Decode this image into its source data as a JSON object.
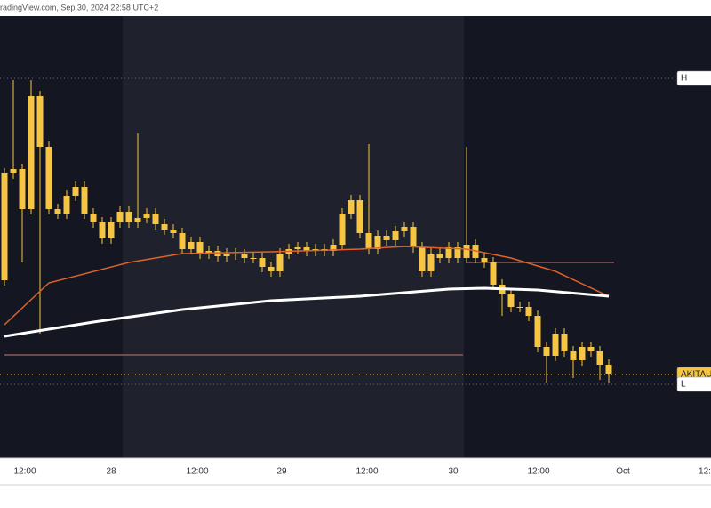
{
  "chart_data": {
    "type": "candlestick",
    "header": "radingView.com, Sep 30, 2024 22:58 UTC+2",
    "time_labels": [
      "12:00",
      "28",
      "12:00",
      "29",
      "12:00",
      "30",
      "12:00",
      "Oct",
      "12:"
    ],
    "ylim": [
      0,
      497
    ],
    "color": "#f5c543",
    "open": [
      200,
      320,
      325,
      280,
      407,
      350,
      280,
      275,
      295,
      305,
      275,
      265,
      247,
      265,
      277,
      265,
      270,
      275,
      263,
      257,
      253,
      235,
      243,
      230,
      233,
      227,
      230,
      229,
      225,
      225,
      215,
      210,
      230,
      235,
      237,
      233,
      235,
      233,
      240,
      275,
      290,
      253,
      235,
      250,
      245,
      255,
      260,
      237,
      210,
      230,
      225,
      237,
      225,
      240,
      225,
      220,
      195,
      185,
      170,
      170,
      160,
      125,
      115,
      140,
      120,
      110,
      125,
      120,
      105
    ],
    "high": [
      326,
      425,
      331,
      425,
      413,
      356,
      286,
      301,
      311,
      311,
      281,
      271,
      271,
      283,
      283,
      365,
      281,
      281,
      269,
      263,
      259,
      249,
      249,
      239,
      239,
      236,
      236,
      235,
      231,
      231,
      221,
      236,
      241,
      243,
      243,
      241,
      241,
      246,
      281,
      296,
      296,
      353,
      256,
      256,
      261,
      266,
      266,
      243,
      236,
      236,
      243,
      243,
      350,
      246,
      231,
      226,
      201,
      191,
      176,
      176,
      166,
      131,
      146,
      146,
      126,
      131,
      131,
      126,
      111
    ],
    "low": [
      194,
      314,
      220,
      274,
      140,
      274,
      269,
      269,
      289,
      269,
      259,
      241,
      241,
      259,
      259,
      259,
      264,
      257,
      251,
      247,
      229,
      229,
      224,
      224,
      221,
      221,
      223,
      219,
      219,
      209,
      204,
      204,
      224,
      229,
      227,
      227,
      227,
      227,
      234,
      269,
      247,
      229,
      229,
      239,
      239,
      249,
      231,
      204,
      204,
      219,
      219,
      219,
      219,
      219,
      214,
      189,
      160,
      164,
      164,
      154,
      119,
      85,
      109,
      114,
      90,
      104,
      114,
      88,
      85
    ],
    "close": [
      320,
      325,
      280,
      407,
      350,
      280,
      275,
      295,
      305,
      275,
      265,
      247,
      265,
      277,
      265,
      270,
      275,
      263,
      257,
      253,
      235,
      243,
      230,
      233,
      227,
      230,
      229,
      225,
      225,
      215,
      210,
      230,
      235,
      237,
      233,
      235,
      233,
      240,
      275,
      290,
      253,
      235,
      250,
      245,
      255,
      260,
      237,
      210,
      230,
      225,
      237,
      225,
      240,
      225,
      220,
      195,
      185,
      170,
      170,
      160,
      125,
      115,
      140,
      120,
      110,
      125,
      120,
      105,
      95
    ],
    "series": [
      {
        "color": "#e0622a",
        "x": [
          0,
          5,
          14,
          20,
          30,
          40,
          45,
          52,
          57,
          62,
          68
        ],
        "values": [
          150,
          197,
          220,
          230,
          232,
          235,
          238,
          235,
          225,
          210,
          182
        ]
      },
      {
        "color": "#ffffff",
        "x": [
          0,
          10,
          20,
          30,
          40,
          50,
          54,
          60,
          68
        ],
        "values": [
          137,
          153,
          167,
          177,
          182,
          190,
          191,
          189,
          182
        ]
      }
    ],
    "levels": [
      {
        "label": "H",
        "value": 427,
        "color": "#6b7080",
        "style": "dotted",
        "bg": "#ffffff"
      },
      {
        "value": 220,
        "color": "#8a5a5a",
        "style": "solid",
        "from": 52,
        "to": 68
      },
      {
        "value": 116,
        "color": "#8a5a5a",
        "style": "solid",
        "from": 0,
        "to": 51
      },
      {
        "label": "AKITAU",
        "value": 94,
        "color": "#f5c543",
        "style": "dotted",
        "bg": "#f5c543"
      },
      {
        "label": "L",
        "value": 83,
        "color": "#6b7080",
        "style": "dotted",
        "bg": "#ffffff"
      }
    ]
  }
}
